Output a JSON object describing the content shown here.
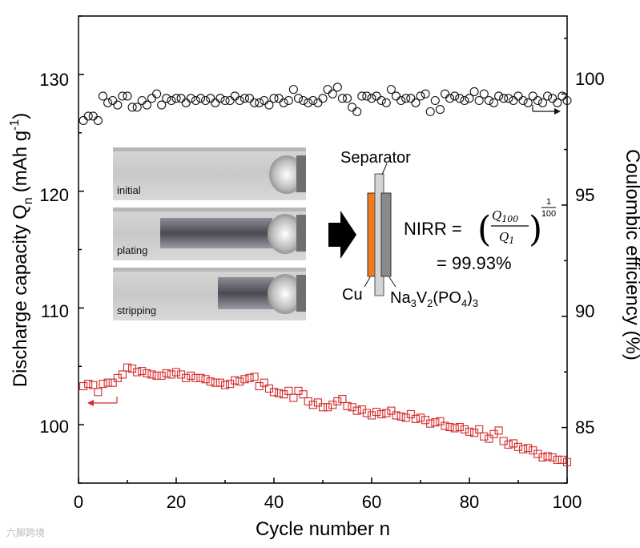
{
  "chart_data": {
    "type": "scatter",
    "xlabel": "Cycle number n",
    "ylabel_left": "Discharge capacity Q",
    "ylabel_left_sub": "n",
    "ylabel_left_unit": "(mAh g",
    "ylabel_left_sup": "-1",
    "ylabel_left_close": ")",
    "ylabel_right": "Coulombic efficiency (%)",
    "xlim": [
      0,
      100
    ],
    "ylim_left": [
      95,
      135
    ],
    "ylim_right": [
      82.5,
      103.5
    ],
    "x_ticks": [
      "0",
      "20",
      "40",
      "60",
      "80",
      "100"
    ],
    "y_left_ticks": [
      "100",
      "110",
      "120",
      "130"
    ],
    "y_right_ticks": [
      "85",
      "90",
      "95",
      "100"
    ],
    "series": [
      {
        "name": "Discharge capacity",
        "axis": "left",
        "marker": "square",
        "color": "#d42a2a",
        "x": [
          1,
          2,
          3,
          4,
          5,
          6,
          7,
          8,
          9,
          10,
          11,
          12,
          13,
          14,
          15,
          16,
          17,
          18,
          19,
          20,
          21,
          22,
          23,
          24,
          25,
          26,
          27,
          28,
          29,
          30,
          31,
          32,
          33,
          34,
          35,
          36,
          37,
          38,
          39,
          40,
          41,
          42,
          43,
          44,
          45,
          46,
          47,
          48,
          49,
          50,
          51,
          52,
          53,
          54,
          55,
          56,
          57,
          58,
          59,
          60,
          61,
          62,
          63,
          64,
          65,
          66,
          67,
          68,
          69,
          70,
          71,
          72,
          73,
          74,
          75,
          76,
          77,
          78,
          79,
          80,
          81,
          82,
          83,
          84,
          85,
          86,
          87,
          88,
          89,
          90,
          91,
          92,
          93,
          94,
          95,
          96,
          97,
          98,
          99,
          100
        ],
        "values": [
          103.3,
          103.5,
          103.4,
          102.8,
          103.5,
          103.6,
          103.6,
          104.0,
          104.3,
          104.9,
          104.8,
          104.5,
          104.6,
          104.4,
          104.3,
          104.2,
          104.2,
          104.4,
          104.3,
          104.5,
          104.3,
          104.0,
          104.2,
          104.0,
          104.0,
          103.9,
          103.7,
          103.6,
          103.6,
          103.4,
          103.5,
          103.8,
          103.7,
          103.9,
          104.0,
          104.1,
          103.3,
          103.6,
          103.1,
          102.8,
          102.7,
          102.6,
          102.9,
          102.3,
          102.9,
          102.6,
          102.0,
          101.7,
          101.9,
          101.5,
          101.5,
          101.7,
          102.0,
          102.2,
          101.6,
          101.5,
          101.2,
          101.3,
          101.0,
          100.8,
          101.1,
          100.9,
          101.0,
          101.2,
          100.8,
          100.7,
          100.6,
          100.9,
          100.5,
          100.6,
          100.4,
          100.1,
          100.2,
          100.3,
          99.9,
          99.8,
          99.7,
          99.8,
          99.6,
          99.4,
          99.3,
          99.6,
          99.0,
          98.8,
          99.2,
          99.5,
          98.6,
          98.3,
          98.4,
          98.1,
          97.9,
          98.0,
          97.8,
          97.5,
          97.2,
          97.3,
          97.2,
          97.0,
          97.0,
          96.8
        ]
      },
      {
        "name": "Coulombic efficiency",
        "axis": "right",
        "marker": "circle",
        "color": "#111111",
        "x": [
          1,
          2,
          3,
          4,
          5,
          6,
          7,
          8,
          9,
          10,
          11,
          12,
          13,
          14,
          15,
          16,
          17,
          18,
          19,
          20,
          21,
          22,
          23,
          24,
          25,
          26,
          27,
          28,
          29,
          30,
          31,
          32,
          33,
          34,
          35,
          36,
          37,
          38,
          39,
          40,
          41,
          42,
          43,
          44,
          45,
          46,
          47,
          48,
          49,
          50,
          51,
          52,
          53,
          54,
          55,
          56,
          57,
          58,
          59,
          60,
          61,
          62,
          63,
          64,
          65,
          66,
          67,
          68,
          69,
          70,
          71,
          72,
          73,
          74,
          75,
          76,
          77,
          78,
          79,
          80,
          81,
          82,
          83,
          84,
          85,
          86,
          87,
          88,
          89,
          90,
          91,
          92,
          93,
          94,
          95,
          96,
          97,
          98,
          99,
          100
        ],
        "values": [
          98.8,
          99.0,
          99.0,
          98.8,
          99.9,
          99.6,
          99.7,
          99.5,
          99.9,
          99.9,
          99.4,
          99.4,
          99.7,
          99.5,
          99.8,
          100.0,
          99.5,
          99.8,
          99.7,
          99.8,
          99.8,
          99.6,
          99.8,
          99.7,
          99.8,
          99.7,
          99.8,
          99.6,
          99.8,
          99.7,
          99.7,
          99.9,
          99.7,
          99.8,
          99.8,
          99.6,
          99.6,
          99.7,
          99.5,
          99.8,
          99.8,
          99.6,
          99.7,
          100.2,
          99.8,
          99.7,
          99.6,
          99.7,
          99.6,
          99.8,
          100.2,
          100.0,
          100.3,
          99.8,
          99.8,
          99.4,
          99.2,
          99.9,
          99.9,
          99.8,
          99.9,
          99.7,
          99.6,
          100.2,
          99.9,
          99.7,
          99.8,
          99.8,
          99.6,
          99.9,
          100.0,
          99.2,
          99.7,
          99.3,
          100.0,
          99.8,
          99.9,
          99.8,
          99.7,
          99.8,
          100.1,
          99.7,
          100.0,
          99.7,
          99.6,
          99.9,
          99.8,
          99.8,
          99.7,
          99.9,
          99.7,
          99.6,
          99.9,
          99.7,
          99.6,
          99.9,
          99.8,
          99.6,
          99.9,
          99.7
        ]
      }
    ],
    "annotations": {
      "photo_labels": [
        "initial",
        "plating",
        "stripping"
      ],
      "separator_label": "Separator",
      "cu_label": "Cu",
      "cathode_label": "Na3V2(PO4)3",
      "cathode_parts": [
        "Na",
        "3",
        "V",
        "2",
        "(PO",
        "4",
        ")",
        "3"
      ],
      "formula_lhs": "NIRR = ",
      "formula_num": "Q",
      "formula_num_sub": "100",
      "formula_den": "Q",
      "formula_den_sub": "1",
      "formula_exp_num": "1",
      "formula_exp_den": "100",
      "formula_result": "= 99.93%"
    },
    "colors": {
      "capacity": "#d42a2a",
      "efficiency": "#111111",
      "cu_foil": "#f07a1e",
      "electrode_gray": "#8a8a8a",
      "separator": "#cfcfcf"
    }
  },
  "watermark": "六脚跨境"
}
